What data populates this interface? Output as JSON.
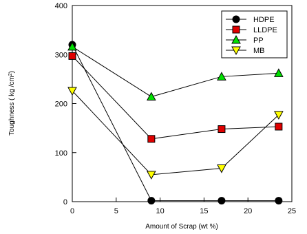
{
  "chart_data": {
    "type": "line",
    "xlabel": "Amount of Scrap  (wt %)",
    "ylabel_main": "Toughness ( kg /cm",
    "ylabel_sup": "2",
    "ylabel_end": ")",
    "xlim": [
      0,
      25
    ],
    "ylim": [
      0,
      400
    ],
    "x_ticks": [
      0,
      5,
      10,
      15,
      20,
      25
    ],
    "y_ticks": [
      0,
      100,
      200,
      300,
      400
    ],
    "grid": false,
    "legend_position": "top-right",
    "series": [
      {
        "name": "HDPE",
        "marker": "circle",
        "color": "#000000",
        "x": [
          0,
          9,
          17,
          23.5
        ],
        "y": [
          320,
          2,
          2,
          2
        ]
      },
      {
        "name": "LLDPE",
        "marker": "square",
        "color": "#e00000",
        "x": [
          0,
          9,
          17,
          23.5
        ],
        "y": [
          297,
          128,
          148,
          153
        ]
      },
      {
        "name": "PP",
        "marker": "triangle-up",
        "color": "#00e000",
        "x": [
          0,
          9,
          17,
          23.5
        ],
        "y": [
          316,
          214,
          255,
          262
        ]
      },
      {
        "name": "MB",
        "marker": "triangle-down",
        "color": "#ffff00",
        "x": [
          0,
          9,
          17,
          23.5
        ],
        "y": [
          226,
          55,
          68,
          177
        ]
      }
    ]
  }
}
